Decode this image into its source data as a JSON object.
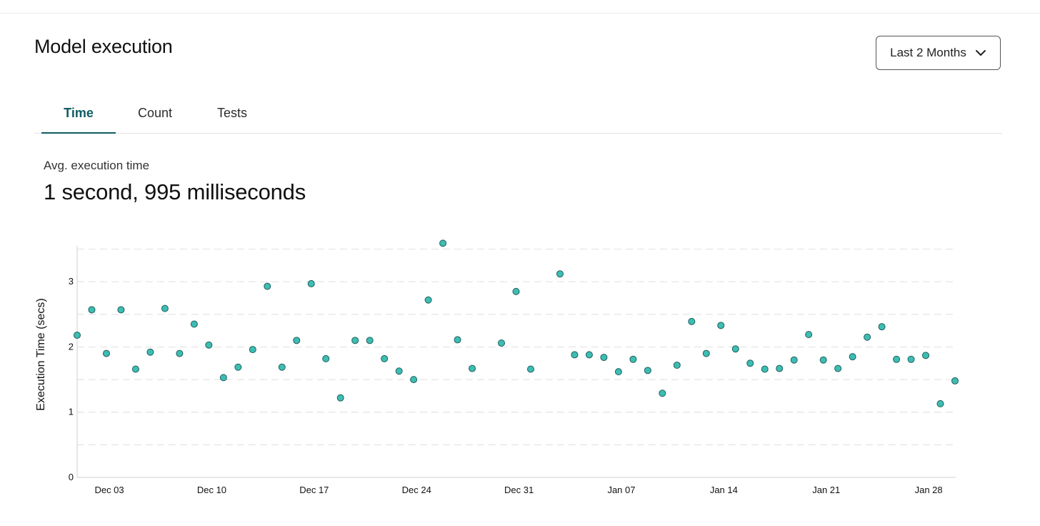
{
  "header": {
    "title": "Model execution",
    "range_select": {
      "value": "Last 2 Months",
      "icon": "chevron-down-icon"
    }
  },
  "tabs": [
    {
      "label": "Time",
      "active": true
    },
    {
      "label": "Count",
      "active": false
    },
    {
      "label": "Tests",
      "active": false
    }
  ],
  "metric": {
    "label": "Avg. execution time",
    "value": "1 second, 995 milliseconds"
  },
  "colors": {
    "accent": "#0e5c63",
    "point_fill": "#3dbdb3",
    "point_stroke": "#1f5f5b",
    "grid": "#e4e4e4"
  },
  "chart_data": {
    "type": "scatter",
    "title": "",
    "xlabel": "",
    "ylabel": "Execution Time (secs)",
    "ylim": [
      0,
      3.55
    ],
    "yticks": [
      0,
      1,
      2,
      3
    ],
    "grid": "dashed horizontal every 0.5",
    "x_start": "Dec 01",
    "x_tick_labels": [
      {
        "day": 2.2,
        "label": "Dec 03"
      },
      {
        "day": 9.2,
        "label": "Dec 10"
      },
      {
        "day": 16.2,
        "label": "Dec 17"
      },
      {
        "day": 23.2,
        "label": "Dec 24"
      },
      {
        "day": 30.2,
        "label": "Dec 31"
      },
      {
        "day": 37.2,
        "label": "Jan 07"
      },
      {
        "day": 44.2,
        "label": "Jan 14"
      },
      {
        "day": 51.2,
        "label": "Jan 21"
      },
      {
        "day": 58.2,
        "label": "Jan 28"
      }
    ],
    "series": [
      {
        "name": "Execution time",
        "x": [
          0,
          1,
          2,
          3,
          4,
          5,
          6,
          7,
          8,
          9,
          10,
          11,
          12,
          13,
          14,
          15,
          16,
          17,
          18,
          19,
          20,
          21,
          22,
          23,
          24,
          25,
          26,
          27,
          28,
          29,
          30,
          31,
          32,
          33,
          34,
          35,
          36,
          37,
          38,
          39,
          40,
          41,
          42,
          43,
          44,
          45,
          46,
          47,
          48,
          49,
          50,
          51,
          52,
          53,
          54,
          55,
          56,
          57,
          58,
          59,
          60
        ],
        "values": [
          2.18,
          2.57,
          1.9,
          2.57,
          1.66,
          1.92,
          2.59,
          1.9,
          2.35,
          2.03,
          1.53,
          1.69,
          1.96,
          2.93,
          1.69,
          2.1,
          2.97,
          1.82,
          1.22,
          2.1,
          2.1,
          1.82,
          1.63,
          1.5,
          2.72,
          3.59,
          2.11,
          1.67,
          null,
          2.06,
          2.85,
          1.66,
          null,
          3.12,
          1.88,
          1.88,
          1.84,
          1.62,
          1.81,
          1.64,
          1.29,
          1.72,
          2.39,
          1.9,
          2.33,
          1.97,
          1.75,
          1.66,
          1.67,
          1.8,
          2.19,
          1.8,
          1.67,
          1.85,
          2.15,
          2.31,
          1.81,
          1.81,
          1.87,
          1.13,
          1.48
        ]
      }
    ]
  }
}
